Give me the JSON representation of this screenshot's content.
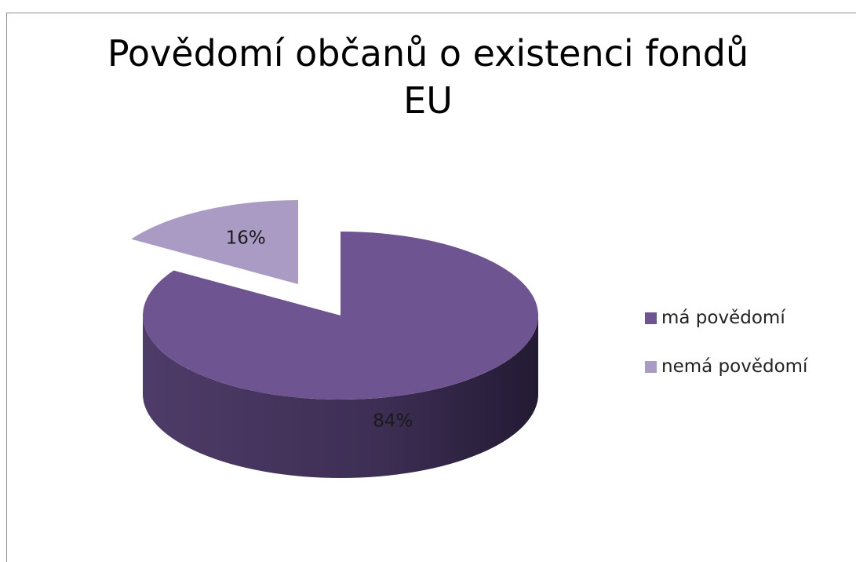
{
  "chart_data": {
    "type": "pie",
    "title_lines": [
      "Povědomí občanů o existenci fondů",
      "EU"
    ],
    "categories": [
      "má povědomí",
      "nemá povědomí"
    ],
    "values": [
      84,
      16
    ],
    "data_labels": [
      "84%",
      "16%"
    ],
    "colors": [
      "#6e5490",
      "#a99bc4"
    ],
    "side_colors": [
      "#3e2f55",
      "#433d52"
    ],
    "three_d": true,
    "exploded_slice": "nemá povědomí",
    "legend_position": "right"
  }
}
